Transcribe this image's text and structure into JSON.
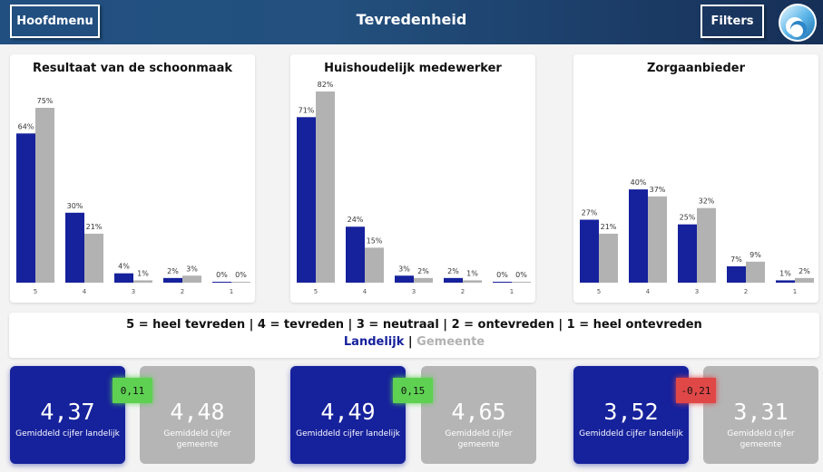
{
  "header": {
    "title": "Tevredenheid",
    "menu_label": "Hoofdmenu",
    "filters_label": "Filters"
  },
  "colors": {
    "landelijk": "#16219c",
    "gemeente": "#b2b2b2",
    "positive": "#5ed152",
    "negative": "#e04848"
  },
  "chart_data": [
    {
      "type": "bar",
      "title": "Resultaat van de schoonmaak",
      "categories": [
        "5",
        "4",
        "3",
        "2",
        "1"
      ],
      "series": [
        {
          "name": "Landelijk",
          "values": [
            64,
            30,
            4,
            2,
            0
          ],
          "labels": [
            "64%",
            "30%",
            "4%",
            "2%",
            "0%"
          ]
        },
        {
          "name": "Gemeente",
          "values": [
            75,
            21,
            1,
            3,
            0
          ],
          "labels": [
            "75%",
            "21%",
            "1%",
            "3%",
            "0%"
          ]
        }
      ]
    },
    {
      "type": "bar",
      "title": "Huishoudelijk medewerker",
      "categories": [
        "5",
        "4",
        "3",
        "2",
        "1"
      ],
      "series": [
        {
          "name": "Landelijk",
          "values": [
            71,
            24,
            3,
            2,
            0
          ],
          "labels": [
            "71%",
            "24%",
            "3%",
            "2%",
            "0%"
          ]
        },
        {
          "name": "Gemeente",
          "values": [
            82,
            15,
            2,
            1,
            0
          ],
          "labels": [
            "82%",
            "15%",
            "2%",
            "1%",
            "0%"
          ]
        }
      ]
    },
    {
      "type": "bar",
      "title": "Zorgaanbieder",
      "categories": [
        "5",
        "4",
        "3",
        "2",
        "1"
      ],
      "series": [
        {
          "name": "Landelijk",
          "values": [
            27,
            40,
            25,
            7,
            1
          ],
          "labels": [
            "27%",
            "40%",
            "25%",
            "7%",
            "1%"
          ]
        },
        {
          "name": "Gemeente",
          "values": [
            21,
            37,
            32,
            9,
            2
          ],
          "labels": [
            "21%",
            "37%",
            "32%",
            "9%",
            "2%"
          ]
        }
      ]
    }
  ],
  "legend": {
    "scale_text": "5 = heel tevreden | 4 = tevreden | 3 = neutraal | 2 = ontevreden | 1 = heel ontevreden",
    "landelijk": "Landelijk",
    "separator": " | ",
    "gemeente": "Gemeente"
  },
  "kpis": [
    {
      "landelijk_value": "4,37",
      "landelijk_label": "Gemiddeld cijfer landelijk",
      "gemeente_value": "4,48",
      "gemeente_label": "Gemiddeld cijfer gemeente",
      "delta": "0,11",
      "delta_status": "positive"
    },
    {
      "landelijk_value": "4,49",
      "landelijk_label": "Gemiddeld cijfer landelijk",
      "gemeente_value": "4,65",
      "gemeente_label": "Gemiddeld cijfer gemeente",
      "delta": "0,15",
      "delta_status": "positive"
    },
    {
      "landelijk_value": "3,52",
      "landelijk_label": "Gemiddeld cijfer landelijk",
      "gemeente_value": "3,31",
      "gemeente_label": "Gemiddeld cijfer gemeente",
      "delta": "-0,21",
      "delta_status": "negative"
    }
  ]
}
